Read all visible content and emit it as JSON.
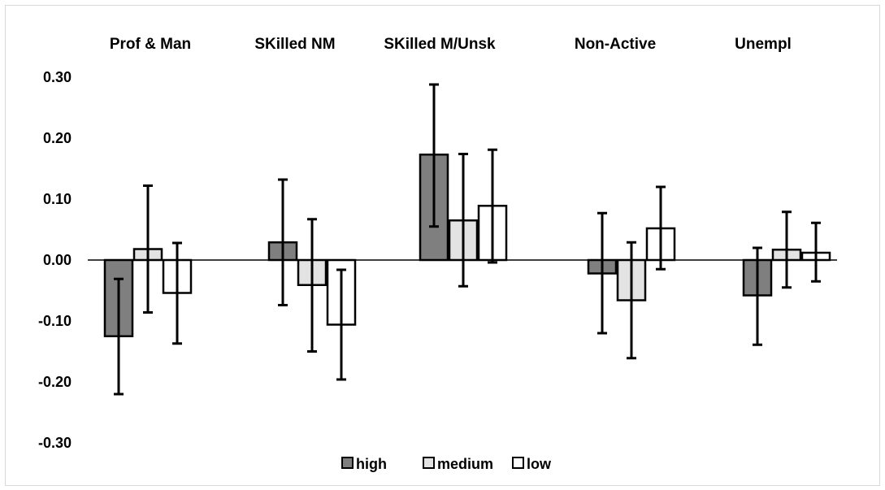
{
  "chart_data": {
    "type": "bar",
    "categories": [
      "Prof & Man",
      "SKilled NM",
      "SKilled M/Unsk",
      "Non-Active",
      "Unempl"
    ],
    "series": [
      {
        "name": "high",
        "values": [
          -0.125,
          0.029,
          0.173,
          -0.022,
          -0.058
        ],
        "err_low": [
          -0.22,
          -0.074,
          0.055,
          -0.12,
          -0.139
        ],
        "err_high": [
          -0.031,
          0.132,
          0.288,
          0.077,
          0.02
        ]
      },
      {
        "name": "medium",
        "values": [
          0.018,
          -0.041,
          0.065,
          -0.066,
          0.017
        ],
        "err_low": [
          -0.086,
          -0.15,
          -0.043,
          -0.161,
          -0.045
        ],
        "err_high": [
          0.122,
          0.067,
          0.174,
          0.029,
          0.079
        ]
      },
      {
        "name": "low",
        "values": [
          -0.054,
          -0.106,
          0.089,
          0.052,
          0.012
        ],
        "err_low": [
          -0.137,
          -0.196,
          -0.004,
          -0.015,
          -0.035
        ],
        "err_high": [
          0.028,
          -0.016,
          0.181,
          0.12,
          0.061
        ]
      }
    ],
    "ylim": [
      -0.3,
      0.3
    ],
    "yticks": [
      "0.30",
      "0.20",
      "0.10",
      "0.00",
      "-0.10",
      "-0.20",
      "-0.30"
    ],
    "legend": {
      "position": "bottom",
      "entries": [
        "high",
        "medium",
        "low"
      ]
    },
    "colors": {
      "high": "#7f7f7f",
      "medium": "#e3e3e3",
      "low": "#ffffff",
      "stroke": "#000000",
      "axis": "#000000",
      "frame": "#d9d9d9"
    },
    "grid": false,
    "error_bars": true
  }
}
